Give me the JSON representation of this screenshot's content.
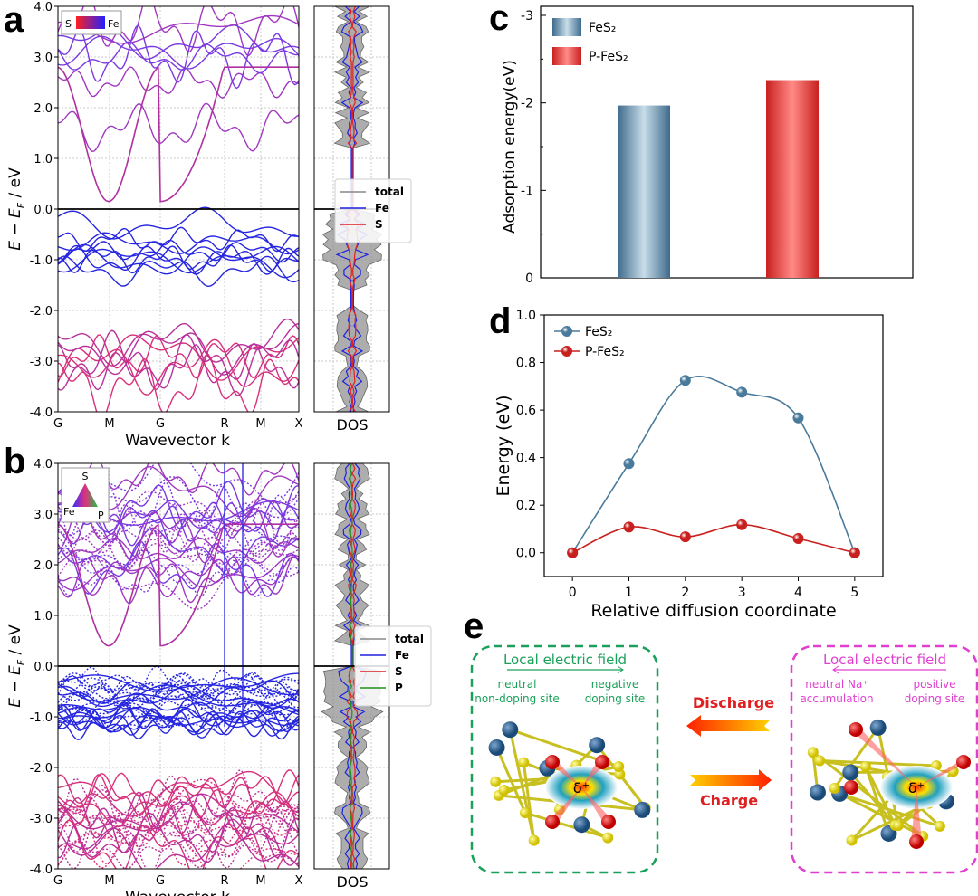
{
  "panel_labels": {
    "a": "a",
    "b": "b",
    "c": "c",
    "d": "d",
    "e": "e"
  },
  "chart_data": [
    {
      "panel": "a",
      "type": "line",
      "title": "",
      "xlabel": "Wavevector k",
      "ylabel_parts": [
        "E − E",
        "F",
        " / eV"
      ],
      "xticks": [
        "G",
        "M",
        "G",
        "R",
        "M",
        "X"
      ],
      "yticks": [
        "-4.0",
        "-3.0",
        "-2.0",
        "-1.0",
        "0.0",
        "1.0",
        "2.0",
        "3.0",
        "4.0"
      ],
      "ylim": [
        -4,
        4
      ],
      "grid": true,
      "fermi_level": 0,
      "conduction_band_minimum": 0.15,
      "color_legend": {
        "left": "S",
        "right": "Fe"
      },
      "dos": {
        "xlabel": "DOS",
        "legend": [
          "total",
          "Fe",
          "S"
        ],
        "legend_placement": "center"
      }
    },
    {
      "panel": "b",
      "type": "line",
      "title": "",
      "xlabel": "Wavevector k",
      "ylabel_parts": [
        "E − E",
        "F",
        " / eV"
      ],
      "xticks": [
        "G",
        "M",
        "G",
        "R",
        "M",
        "X"
      ],
      "yticks": [
        "-4.0",
        "-3.0",
        "-2.0",
        "-1.0",
        "0.0",
        "1.0",
        "2.0",
        "3.0",
        "4.0"
      ],
      "ylim": [
        -4,
        4
      ],
      "grid": true,
      "fermi_level": 0,
      "conduction_band_minimum": 0.4,
      "color_legend": {
        "top": "S",
        "left": "Fe",
        "right": "P"
      },
      "dos": {
        "xlabel": "DOS",
        "legend": [
          "total",
          "Fe",
          "S",
          "P"
        ],
        "legend_placement": "center-right"
      }
    },
    {
      "panel": "c",
      "type": "bar",
      "title": "",
      "xlabel": "",
      "ylabel": "Adsorption energy(eV)",
      "categories": [
        "FeS₂",
        "P-FeS₂"
      ],
      "values": [
        -1.97,
        -2.26
      ],
      "yticks": [
        "-3",
        "-2",
        "-1",
        "0"
      ],
      "ylim": [
        0,
        -3
      ],
      "legend_placement": "top-left",
      "colors": [
        "#6f93ae",
        "#e8504f"
      ]
    },
    {
      "panel": "d",
      "type": "line",
      "title": "",
      "xlabel": "Relative diffusion coordinate",
      "ylabel": "Energy (eV)",
      "x": [
        0,
        1,
        2,
        3,
        4,
        5
      ],
      "xticks": [
        "0",
        "1",
        "2",
        "3",
        "4",
        "5"
      ],
      "yticks": [
        "0.0",
        "0.2",
        "0.4",
        "0.6",
        "0.8",
        "1.0"
      ],
      "ylim": [
        -0.1,
        1.0
      ],
      "xlim": [
        -0.5,
        5.5
      ],
      "legend_placement": "top-left",
      "series": [
        {
          "name": "FeS₂",
          "values": [
            0,
            0.375,
            0.725,
            0.675,
            0.567,
            0
          ],
          "color": "#4a7a9b"
        },
        {
          "name": "P-FeS₂",
          "values": [
            0,
            0.108,
            0.067,
            0.118,
            0.06,
            0
          ],
          "color": "#c8201e"
        }
      ]
    }
  ],
  "diagram_e": {
    "left": {
      "title": "Local electric field",
      "site1": [
        "neutral",
        "non-doping site"
      ],
      "site2": [
        "negative",
        "doping site"
      ],
      "color": "#1aa05a"
    },
    "right": {
      "title": "Local electric field",
      "site1": [
        "neutral Na⁺",
        "accumulation"
      ],
      "site2": [
        "positive",
        "doping site"
      ],
      "color": "#e040d0"
    },
    "discharge": "Discharge",
    "charge": "Charge",
    "charge_symbol": "δ⁺"
  }
}
